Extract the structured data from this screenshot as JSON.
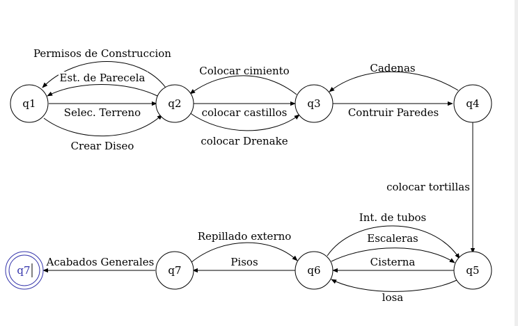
{
  "states": {
    "q1": "q1",
    "q2": "q2",
    "q3": "q3",
    "q4": "q4",
    "q5": "q5",
    "q6": "q6",
    "q7": "q7",
    "final": "q7"
  },
  "transitions": {
    "permisos": "Permisos de Construccion",
    "est_parecela": "Est. de Parecela",
    "selec_terreno": "Selec. Terreno",
    "crear_diseo": "Crear Diseo",
    "colocar_cimiento": "Colocar cimiento",
    "colocar_castillos": "colocar castillos",
    "colocar_drenake": "colocar Drenake",
    "cadenas": "Cadenas",
    "contruir_paredes": "Contruir Paredes",
    "colocar_tortillas": "colocar tortillas",
    "int_tubos": "Int. de tubos",
    "escaleras": "Escaleras",
    "cisterna": "Cisterna",
    "losa": "losa",
    "repillado": "Repillado externo",
    "pisos": "Pisos",
    "acabados": "Acabados Generales"
  }
}
